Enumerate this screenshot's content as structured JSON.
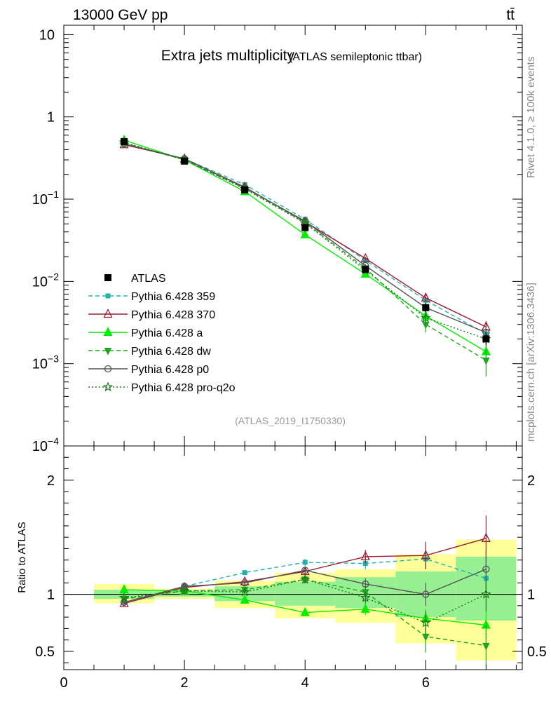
{
  "header": {
    "energy_label": "13000 GeV pp",
    "process_label": "tt̄"
  },
  "side_labels": {
    "rivet": "Rivet 4.1.0, ≥ 100k events",
    "mcplots": "mcplots.cern.ch [arXiv:1306.3436]"
  },
  "chart_data": [
    {
      "type": "line",
      "title": "Extra jets multiplicity",
      "subtitle": "(ATLAS semileptonic ttbar)",
      "analysis_tag": "(ATLAS_2019_I1750330)",
      "yscale": "log",
      "ylim": [
        0.0001,
        13
      ],
      "xlim": [
        0,
        7.6
      ],
      "y_ticks": [
        {
          "value": 10,
          "base": "10",
          "exp": ""
        },
        {
          "value": 1,
          "base": "1",
          "exp": ""
        },
        {
          "value": 0.1,
          "base": "10",
          "exp": "−1"
        },
        {
          "value": 0.01,
          "base": "10",
          "exp": "−2"
        },
        {
          "value": 0.001,
          "base": "10",
          "exp": "−3"
        },
        {
          "value": 0.0001,
          "base": "10",
          "exp": "−4"
        }
      ],
      "legend_position": "bottom-left",
      "x": [
        1,
        2,
        3,
        4,
        5,
        6,
        7
      ],
      "data": {
        "name": "ATLAS",
        "values": [
          0.5,
          0.29,
          0.13,
          0.045,
          0.014,
          0.0048,
          0.002
        ],
        "err_up": [
          0.55,
          0.305,
          0.14,
          0.049,
          0.0155,
          0.0055,
          0.0024
        ],
        "err_dn": [
          0.46,
          0.28,
          0.122,
          0.042,
          0.0128,
          0.0042,
          0.0017
        ]
      },
      "series": [
        {
          "name": "Pythia 6.428 359",
          "color": "#20b2aa",
          "dash": "6,4",
          "marker": "square",
          "values": [
            0.47,
            0.31,
            0.15,
            0.057,
            0.018,
            0.0059,
            0.0023
          ],
          "err": [
            0.005,
            0.004,
            0.003,
            0.0015,
            0.0008,
            0.0004,
            0.0003
          ]
        },
        {
          "name": "Pythia 6.428 370",
          "color": "#9b1b30",
          "dash": "",
          "marker": "triangle-open",
          "values": [
            0.46,
            0.31,
            0.14,
            0.053,
            0.019,
            0.0063,
            0.0028
          ],
          "err": [
            0.005,
            0.004,
            0.003,
            0.0015,
            0.0008,
            0.0006,
            0.0005
          ]
        },
        {
          "name": "Pythia 6.428 a",
          "color": "#00ee00",
          "dash": "",
          "marker": "triangle",
          "values": [
            0.52,
            0.3,
            0.124,
            0.037,
            0.0123,
            0.0038,
            0.0014
          ],
          "err": [
            0.005,
            0.004,
            0.003,
            0.0015,
            0.0007,
            0.0004,
            0.0003
          ]
        },
        {
          "name": "Pythia 6.428 dw",
          "color": "#1fa51f",
          "dash": "6,4",
          "marker": "triangle-down",
          "values": [
            0.48,
            0.3,
            0.135,
            0.052,
            0.0145,
            0.003,
            0.0011
          ],
          "err": [
            0.005,
            0.004,
            0.003,
            0.0015,
            0.0008,
            0.0006,
            0.0004
          ]
        },
        {
          "name": "Pythia 6.428 p0",
          "color": "#555555",
          "dash": "",
          "marker": "circle-open",
          "values": [
            0.47,
            0.31,
            0.138,
            0.054,
            0.0155,
            0.0048,
            0.0024
          ],
          "err": [
            0.005,
            0.004,
            0.003,
            0.0015,
            0.0008,
            0.0005,
            0.0004
          ]
        },
        {
          "name": "Pythia 6.428 pro-q2o",
          "color": "#1a7a1a",
          "dash": "2,3",
          "marker": "star-open",
          "values": [
            0.49,
            0.3,
            0.133,
            0.051,
            0.0137,
            0.0036,
            0.002
          ],
          "err": [
            0.005,
            0.004,
            0.003,
            0.0015,
            0.0008,
            0.0005,
            0.0004
          ]
        }
      ]
    },
    {
      "type": "line",
      "ylabel": "Ratio to ATLAS",
      "ylim": [
        0.34,
        2.3
      ],
      "xlim": [
        0,
        7.6
      ],
      "y_ticks": [
        {
          "value": 2,
          "label": "2"
        },
        {
          "value": 1,
          "label": "1"
        },
        {
          "value": 0.5,
          "label": "0.5"
        }
      ],
      "x_ticks": [
        {
          "value": 0,
          "label": "0"
        },
        {
          "value": 2,
          "label": "2"
        },
        {
          "value": 4,
          "label": "4"
        },
        {
          "value": 6,
          "label": "6"
        }
      ],
      "bands": [
        {
          "lo": 0.5,
          "hi": 1.5,
          "stat": [
            0.96,
            1.04
          ],
          "total": [
            0.92,
            1.09
          ]
        },
        {
          "lo": 1.5,
          "hi": 2.5,
          "stat": [
            0.98,
            1.03
          ],
          "total": [
            0.96,
            1.05
          ]
        },
        {
          "lo": 2.5,
          "hi": 3.5,
          "stat": [
            0.94,
            1.07
          ],
          "total": [
            0.88,
            1.12
          ]
        },
        {
          "lo": 3.5,
          "hi": 4.5,
          "stat": [
            0.9,
            1.11
          ],
          "total": [
            0.79,
            1.19
          ]
        },
        {
          "lo": 4.5,
          "hi": 5.5,
          "stat": [
            0.88,
            1.15
          ],
          "total": [
            0.75,
            1.22
          ]
        },
        {
          "lo": 5.5,
          "hi": 6.5,
          "stat": [
            0.8,
            1.2
          ],
          "total": [
            0.57,
            1.35
          ]
        },
        {
          "lo": 6.5,
          "hi": 7.5,
          "stat": [
            0.77,
            1.33
          ],
          "total": [
            0.42,
            1.48
          ]
        }
      ],
      "series": [
        {
          "name": "Pythia 6.428 359",
          "values": [
            0.93,
            1.07,
            1.19,
            1.28,
            1.27,
            1.31,
            1.14
          ],
          "err": [
            0.01,
            0.01,
            0.02,
            0.03,
            0.05,
            0.09,
            0.14
          ]
        },
        {
          "name": "Pythia 6.428 370",
          "values": [
            0.92,
            1.06,
            1.11,
            1.2,
            1.33,
            1.34,
            1.49
          ],
          "err": [
            0.01,
            0.01,
            0.02,
            0.03,
            0.06,
            0.12,
            0.2
          ]
        },
        {
          "name": "Pythia 6.428 a",
          "values": [
            1.04,
            1.03,
            0.95,
            0.84,
            0.87,
            0.79,
            0.73
          ],
          "err": [
            0.01,
            0.01,
            0.02,
            0.03,
            0.05,
            0.08,
            0.12
          ]
        },
        {
          "name": "Pythia 6.428 dw",
          "values": [
            0.96,
            1.03,
            1.04,
            1.13,
            1.02,
            0.63,
            0.55
          ],
          "err": [
            0.01,
            0.01,
            0.02,
            0.03,
            0.05,
            0.14,
            0.18
          ]
        },
        {
          "name": "Pythia 6.428 p0",
          "values": [
            0.93,
            1.07,
            1.1,
            1.21,
            1.09,
            1.0,
            1.22
          ],
          "err": [
            0.01,
            0.01,
            0.02,
            0.03,
            0.05,
            0.1,
            0.17
          ]
        },
        {
          "name": "Pythia 6.428 pro-q2o",
          "values": [
            0.97,
            1.03,
            1.02,
            1.13,
            0.97,
            0.75,
            1.0
          ],
          "err": [
            0.01,
            0.01,
            0.02,
            0.03,
            0.05,
            0.1,
            0.15
          ]
        }
      ]
    }
  ]
}
